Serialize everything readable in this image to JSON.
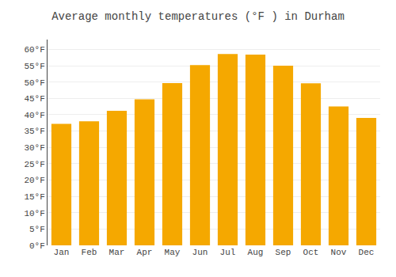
{
  "chart_data": {
    "type": "bar",
    "title": "Average monthly temperatures (°F ) in Durham",
    "categories": [
      "Jan",
      "Feb",
      "Mar",
      "Apr",
      "May",
      "Jun",
      "Jul",
      "Aug",
      "Sep",
      "Oct",
      "Nov",
      "Dec"
    ],
    "values": [
      37.2,
      38.0,
      41.2,
      44.7,
      49.7,
      55.2,
      58.6,
      58.4,
      55.0,
      49.6,
      42.5,
      39.0
    ],
    "color": "#F5A800",
    "ylim": [
      0,
      63
    ],
    "yticks": [
      {
        "value": 0,
        "label": "0°F"
      },
      {
        "value": 5,
        "label": "5°F"
      },
      {
        "value": 10,
        "label": "10°F"
      },
      {
        "value": 15,
        "label": "15°F"
      },
      {
        "value": 20,
        "label": "20°F"
      },
      {
        "value": 25,
        "label": "25°F"
      },
      {
        "value": 30,
        "label": "30°F"
      },
      {
        "value": 35,
        "label": "35°F"
      },
      {
        "value": 40,
        "label": "40°F"
      },
      {
        "value": 45,
        "label": "45°F"
      },
      {
        "value": 50,
        "label": "50°F"
      },
      {
        "value": 55,
        "label": "55°F"
      },
      {
        "value": 60,
        "label": "60°F"
      }
    ],
    "grid": true
  }
}
